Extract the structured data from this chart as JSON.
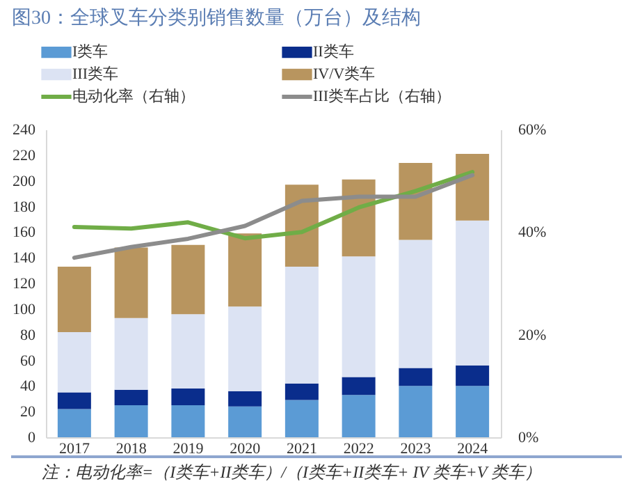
{
  "chart_data": {
    "type": "bar",
    "title": "图30：全球叉车分类别销售数量（万台）及结构",
    "categories": [
      "2017",
      "2018",
      "2019",
      "2020",
      "2021",
      "2022",
      "2023",
      "2024"
    ],
    "stacked": true,
    "series": [
      {
        "name": "I类车",
        "color": "#5b9bd5",
        "values": [
          22,
          25,
          25,
          24,
          29,
          33,
          40,
          40
        ]
      },
      {
        "name": "II类车",
        "color": "#0a2d8c",
        "values": [
          13,
          12,
          13,
          12,
          13,
          14,
          14,
          16
        ]
      },
      {
        "name": "III类车",
        "color": "#dce3f3",
        "values": [
          47,
          56,
          58,
          66,
          91,
          94,
          100,
          113
        ]
      },
      {
        "name": "IV/V类车",
        "color": "#b8955f",
        "values": [
          51,
          55,
          54,
          57,
          64,
          60,
          60,
          52
        ]
      },
      {
        "name": "电动化率（右轴）",
        "type": "line",
        "axis": "y2",
        "color": "#70ad47",
        "values": [
          41,
          40.7,
          41.9,
          38.8,
          40,
          44.8,
          48,
          51.7
        ]
      },
      {
        "name": "III类车占比（右轴）",
        "type": "line",
        "axis": "y2",
        "color": "#8c8c8c",
        "values": [
          35,
          37.1,
          38.7,
          41.2,
          46.1,
          46.9,
          46.9,
          51.1
        ]
      }
    ],
    "ylim": [
      0,
      240
    ],
    "yticks": [
      0,
      20,
      40,
      60,
      80,
      100,
      120,
      140,
      160,
      180,
      200,
      220,
      240
    ],
    "y2lim": [
      0,
      60
    ],
    "y2ticks": [
      {
        "value": 0,
        "label": "0%"
      },
      {
        "value": 20,
        "label": "20%"
      },
      {
        "value": 40,
        "label": "40%"
      },
      {
        "value": 60,
        "label": "60%"
      }
    ],
    "legend": "top",
    "grid": false,
    "annotations": [
      "注：电动化率=（I类车+II类车）/（I类车+II类车+ IV 类车+V 类车）"
    ]
  }
}
